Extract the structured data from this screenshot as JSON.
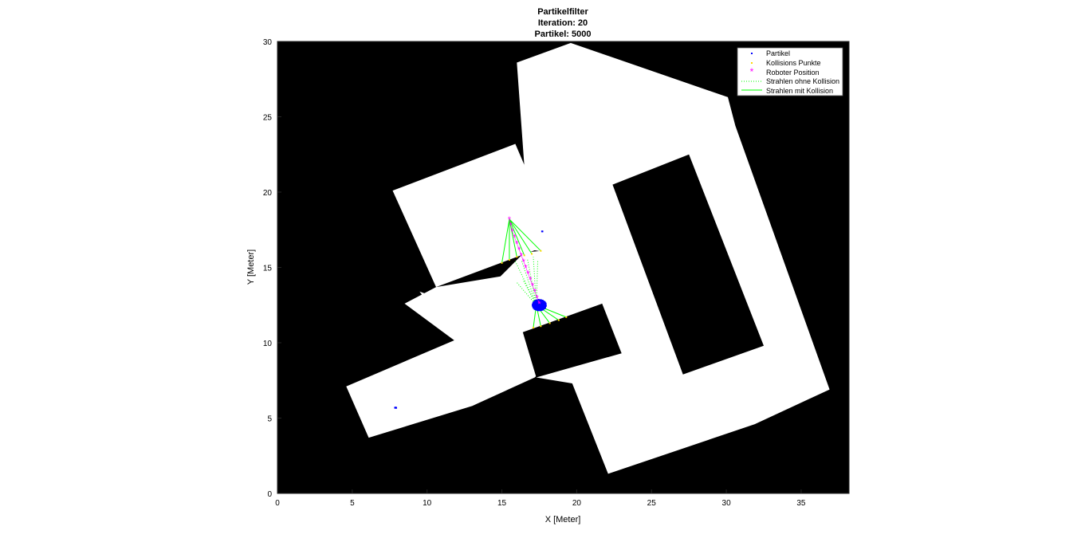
{
  "chart_data": {
    "type": "scatter",
    "title": [
      "Partikelfilter",
      "Iteration: 20",
      "Partikel: 5000"
    ],
    "xlabel": "X [Meter]",
    "ylabel": "Y [Meter]",
    "xlim": [
      0,
      38.2
    ],
    "ylim": [
      0,
      30
    ],
    "xticks": [
      0,
      5,
      10,
      15,
      20,
      25,
      30,
      35
    ],
    "yticks": [
      0,
      5,
      10,
      15,
      20,
      25,
      30
    ],
    "grid": false,
    "legend_position": "top-right",
    "background_map": {
      "obstacle_color": "#000000",
      "free_color": "#ffffff",
      "free_regions": [
        [
          [
            16.0,
            28.6
          ],
          [
            19.6,
            29.9
          ],
          [
            30.1,
            26.3
          ],
          [
            30.6,
            24.4
          ],
          [
            36.9,
            6.9
          ],
          [
            31.9,
            4.6
          ],
          [
            22.1,
            1.3
          ],
          [
            19.7,
            7.3
          ],
          [
            17.3,
            7.7
          ],
          [
            20.2,
            10.0
          ],
          [
            19.1,
            11.9
          ],
          [
            16.8,
            10.6
          ],
          [
            17.8,
            12.8
          ],
          [
            19.8,
            15.7
          ],
          [
            16.8,
            16.2
          ],
          [
            16.2,
            15.4
          ],
          [
            15.0,
            14.3
          ],
          [
            10.9,
            12.9
          ],
          [
            9.5,
            13.4
          ],
          [
            11.9,
            10.2
          ],
          [
            4.6,
            7.1
          ],
          [
            6.1,
            3.7
          ],
          [
            13.0,
            5.8
          ],
          [
            17.2,
            7.7
          ],
          [
            17.5,
            8.0
          ]
        ],
        [
          [
            7.7,
            20.1
          ],
          [
            15.9,
            23.2
          ],
          [
            18.7,
            16.7
          ],
          [
            10.6,
            13.7
          ]
        ],
        [
          [
            8.5,
            12.6
          ],
          [
            10.6,
            13.7
          ],
          [
            14.9,
            14.4
          ],
          [
            16.5,
            16.0
          ],
          [
            20.0,
            16.3
          ],
          [
            20.9,
            14.6
          ],
          [
            21.6,
            12.7
          ],
          [
            19.8,
            11.8
          ],
          [
            16.6,
            10.5
          ],
          [
            17.3,
            8.0
          ],
          [
            13.0,
            5.8
          ],
          [
            11.9,
            10.1
          ]
        ]
      ],
      "obstacle_regions": [
        [
          [
            22.4,
            20.5
          ],
          [
            27.5,
            22.5
          ],
          [
            32.5,
            9.8
          ],
          [
            27.1,
            7.9
          ]
        ],
        [
          [
            16.4,
            10.7
          ],
          [
            21.7,
            12.6
          ],
          [
            23.0,
            9.3
          ],
          [
            17.3,
            7.7
          ]
        ]
      ]
    },
    "series": [
      {
        "name": "Partikel",
        "marker": "dot",
        "color": "#0000ff",
        "clusters": [
          {
            "center": [
              17.5,
              12.5
            ],
            "spread": [
              0.45,
              0.35
            ]
          },
          {
            "center": [
              7.9,
              5.7
            ],
            "spread": [
              0.05,
              0.05
            ]
          },
          {
            "center": [
              17.7,
              17.4
            ],
            "spread": [
              0.02,
              0.02
            ]
          }
        ]
      },
      {
        "name": "Kollisions Punkte",
        "marker": "point",
        "color": "#ffd700",
        "points": [
          [
            15.0,
            15.3
          ],
          [
            15.5,
            15.5
          ],
          [
            16.0,
            15.7
          ],
          [
            16.5,
            15.8
          ],
          [
            17.0,
            15.9
          ],
          [
            17.6,
            16.1
          ],
          [
            17.1,
            11.0
          ],
          [
            17.6,
            11.1
          ],
          [
            18.2,
            11.3
          ],
          [
            18.8,
            11.5
          ],
          [
            19.3,
            11.7
          ]
        ]
      },
      {
        "name": "Roboter Position",
        "marker": "asterisk",
        "color": "#ff00ff",
        "x": [
          15.5,
          15.6,
          15.7,
          15.85,
          16.0,
          16.15,
          16.3,
          16.45,
          16.6,
          16.75,
          16.9,
          17.05,
          17.2,
          17.35,
          17.5
        ],
        "y": [
          18.2,
          17.8,
          17.4,
          17.0,
          16.6,
          16.2,
          15.8,
          15.4,
          15.0,
          14.6,
          14.2,
          13.8,
          13.4,
          13.0,
          12.6
        ]
      },
      {
        "name": "Strahlen ohne Kollision",
        "line_style": "dotted",
        "color": "#00ff00",
        "origin": [
          17.3,
          12.5
        ],
        "end_points": [
          [
            15.9,
            15.4
          ],
          [
            16.3,
            15.5
          ],
          [
            16.7,
            15.6
          ],
          [
            17.1,
            15.7
          ],
          [
            17.4,
            15.5
          ],
          [
            16.0,
            14.0
          ],
          [
            16.4,
            14.2
          ]
        ]
      },
      {
        "name": "Strahlen mit Kollision",
        "line_style": "solid",
        "color": "#00ff00",
        "origins": [
          [
            15.5,
            18.2
          ],
          [
            17.3,
            12.5
          ]
        ],
        "end_points": [
          [
            [
              15.0,
              15.3
            ],
            [
              15.5,
              15.5
            ],
            [
              16.0,
              15.7
            ],
            [
              16.5,
              15.8
            ],
            [
              17.0,
              15.9
            ],
            [
              17.6,
              16.1
            ]
          ],
          [
            [
              17.1,
              11.0
            ],
            [
              17.6,
              11.1
            ],
            [
              18.2,
              11.3
            ],
            [
              18.8,
              11.5
            ],
            [
              19.3,
              11.7
            ]
          ]
        ]
      }
    ]
  }
}
